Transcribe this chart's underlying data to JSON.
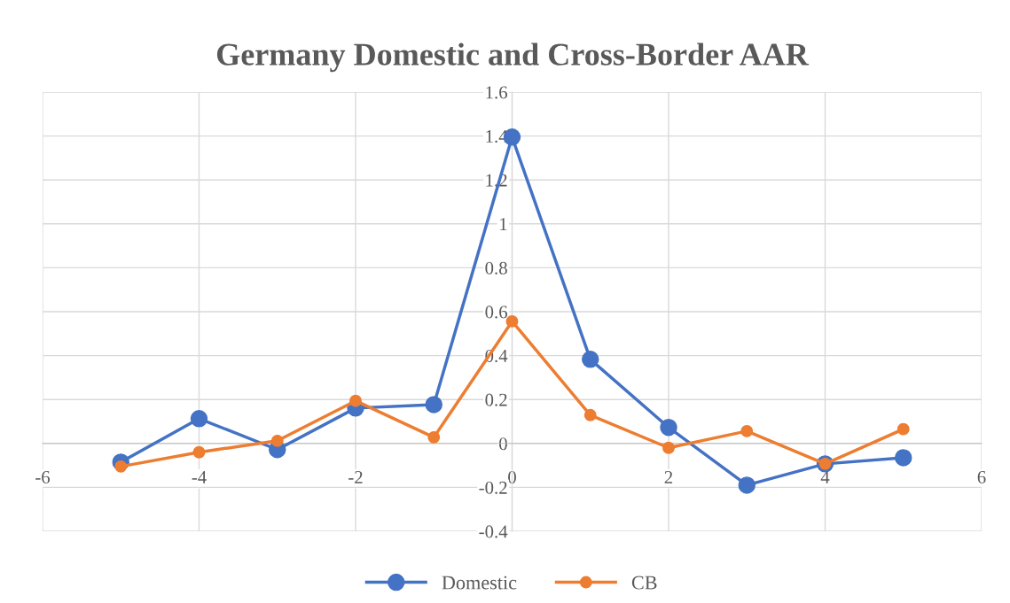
{
  "chart_data": {
    "type": "line",
    "title": "Germany Domestic and Cross-Border AAR",
    "x": [
      -5,
      -4,
      -3,
      -2,
      -1,
      0,
      1,
      2,
      3,
      4,
      5
    ],
    "series": [
      {
        "name": "Domestic",
        "color": "#4472c4",
        "values": [
          -0.085,
          0.113,
          -0.028,
          0.161,
          0.177,
          1.395,
          0.383,
          0.073,
          -0.19,
          -0.093,
          -0.065
        ]
      },
      {
        "name": "CB",
        "color": "#ed7d31",
        "values": [
          -0.105,
          -0.04,
          0.012,
          0.194,
          0.028,
          0.556,
          0.129,
          -0.02,
          0.056,
          -0.093,
          0.065
        ]
      }
    ],
    "xlim": [
      -6,
      6
    ],
    "xticks": [
      -6,
      -4,
      -2,
      0,
      2,
      4,
      6
    ],
    "ylim": [
      -0.4,
      1.6
    ],
    "yticks": [
      -0.4,
      -0.2,
      0,
      0.2,
      0.4,
      0.6,
      0.8,
      1,
      1.2,
      1.4,
      1.6
    ],
    "grid": true,
    "legend": "bottom",
    "marker": "circle",
    "line_style": "solid"
  }
}
